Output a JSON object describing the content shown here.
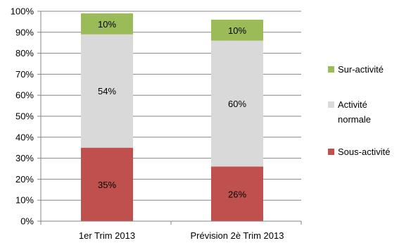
{
  "chart_data": {
    "type": "bar",
    "stacked": true,
    "categories": [
      "1er Trim 2013",
      "Prévision 2è Trim 2013"
    ],
    "series": [
      {
        "name": "Sous-activité",
        "values": [
          35,
          26
        ],
        "color": "#c0504d",
        "labels": [
          "35%",
          "26%"
        ]
      },
      {
        "name": "Activité normale",
        "values": [
          54,
          60
        ],
        "color": "#d9d9d9",
        "labels": [
          "54%",
          "60%"
        ]
      },
      {
        "name": "Sur-activité",
        "values": [
          10,
          10
        ],
        "color": "#9bbb59",
        "labels": [
          "10%",
          "10%"
        ]
      }
    ],
    "ylim": [
      0,
      100
    ],
    "yticks": [
      "0%",
      "10%",
      "20%",
      "30%",
      "40%",
      "50%",
      "60%",
      "70%",
      "80%",
      "90%",
      "100%"
    ],
    "grid": true,
    "legend_position": "right",
    "legend_order": [
      "Sur-activité",
      "Activité normale",
      "Sous-activité"
    ],
    "legend_label_lines": {
      "Sur-activité": [
        "Sur-activité"
      ],
      "Activité normale": [
        "Activité",
        "normale"
      ],
      "Sous-activité": [
        "Sous-activité"
      ]
    }
  }
}
